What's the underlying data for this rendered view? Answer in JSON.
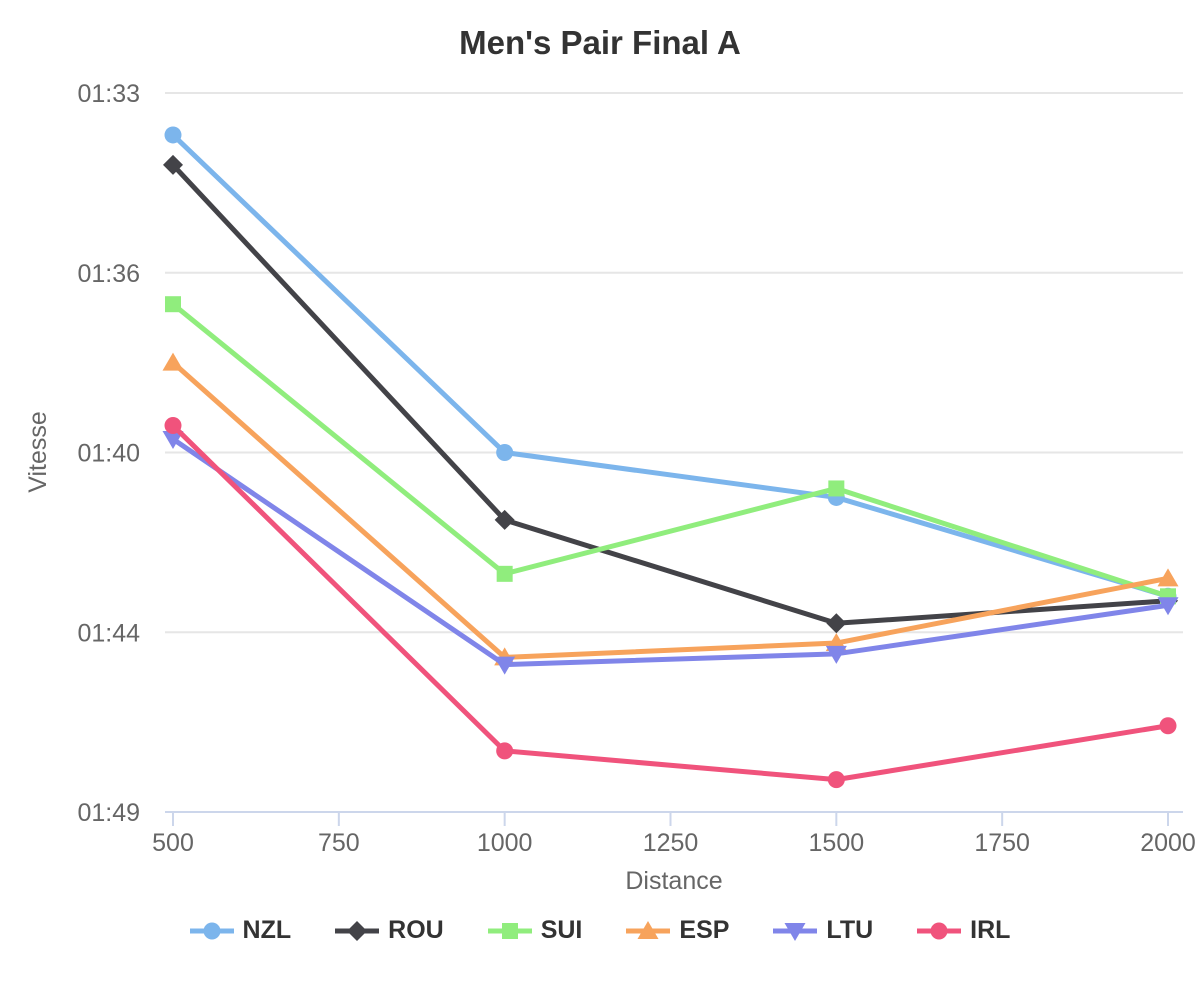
{
  "chart_data": {
    "type": "line",
    "title": "Men's Pair Final A",
    "xlabel": "Distance",
    "ylabel": "Vitesse",
    "x": [
      500,
      1000,
      1500,
      2000
    ],
    "x_ticks": [
      500,
      750,
      1000,
      1250,
      1500,
      1750,
      2000
    ],
    "y_axis": {
      "direction": "faster-times-at-top",
      "tick_values_seconds": [
        93,
        96,
        100,
        104,
        109
      ],
      "tick_labels": [
        "01:33",
        "01:36",
        "01:40",
        "01:44",
        "01:49"
      ]
    },
    "grid": "horizontal",
    "legend_position": "bottom",
    "series": [
      {
        "name": "NZL",
        "color": "#7cb5ec",
        "marker": "circle",
        "values_seconds": [
          93.7,
          100.0,
          101.0,
          103.2
        ],
        "values_formatted": [
          "01:33.7",
          "01:40.0",
          "01:41.0",
          "01:43.2"
        ]
      },
      {
        "name": "ROU",
        "color": "#434348",
        "marker": "diamond",
        "values_seconds": [
          94.2,
          101.5,
          103.8,
          103.3
        ],
        "values_formatted": [
          "01:34.2",
          "01:41.5",
          "01:43.8",
          "01:43.3"
        ]
      },
      {
        "name": "SUI",
        "color": "#90ed7d",
        "marker": "square",
        "values_seconds": [
          96.7,
          102.7,
          100.8,
          103.2
        ],
        "values_formatted": [
          "01:36.7",
          "01:42.7",
          "01:40.8",
          "01:43.2"
        ]
      },
      {
        "name": "ESP",
        "color": "#f7a35c",
        "marker": "triangle-up",
        "values_seconds": [
          98.0,
          104.7,
          104.3,
          102.8
        ],
        "values_formatted": [
          "01:38.0",
          "01:44.7",
          "01:44.3",
          "01:42.8"
        ]
      },
      {
        "name": "LTU",
        "color": "#8085e9",
        "marker": "triangle-down",
        "values_seconds": [
          99.7,
          104.9,
          104.6,
          103.4
        ],
        "values_formatted": [
          "01:39.7",
          "01:44.9",
          "01:44.6",
          "01:43.4"
        ]
      },
      {
        "name": "IRL",
        "color": "#f0537c",
        "marker": "circle",
        "values_seconds": [
          99.4,
          107.3,
          108.1,
          106.6
        ],
        "values_formatted": [
          "01:39.4",
          "01:47.3",
          "01:48.1",
          "01:46.6"
        ]
      }
    ]
  },
  "styles": {
    "grid_color": "#e6e6e6",
    "axis_color": "#ccd6eb",
    "tick_label_color": "#666666",
    "axis_title_color": "#666666",
    "title_color": "#333333",
    "legend_text_color": "#333333"
  }
}
